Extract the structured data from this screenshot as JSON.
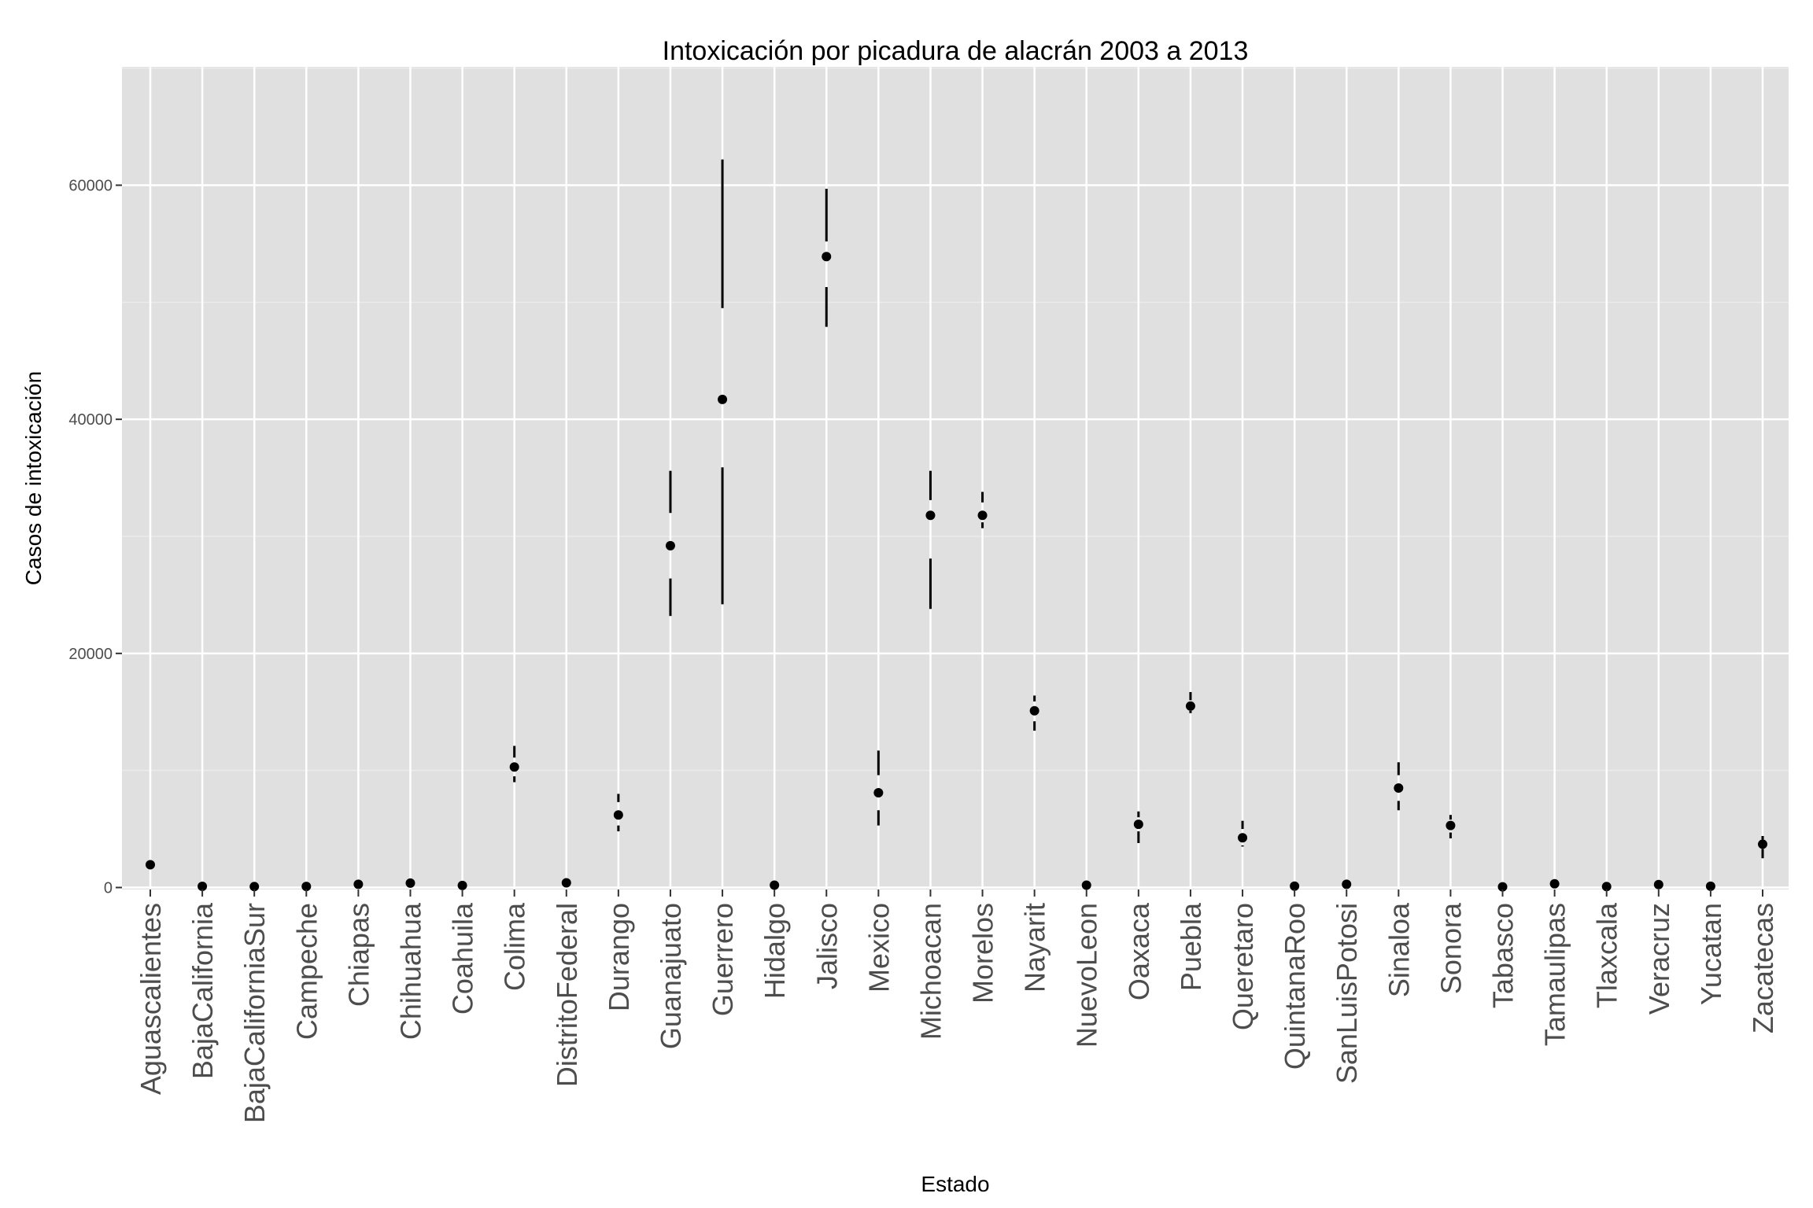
{
  "chart_data": {
    "type": "scatter",
    "title": "Intoxicación por picadura de alacrán 2003 a 2013",
    "xlabel": "Estado",
    "ylabel": "Casos de intoxicación",
    "ylim": [
      0,
      70000
    ],
    "yticks": [
      0,
      20000,
      40000,
      60000
    ],
    "grid": true,
    "legend": "none",
    "colors": {
      "panel": "#e0e0e0",
      "grid_major": "#ffffff",
      "grid_minor": "#ebebeb",
      "mark": "#000000",
      "tick_text": "#4d4d4d"
    },
    "categories": [
      "Aguascalientes",
      "BajaCalifornia",
      "BajaCaliforniaSur",
      "Campeche",
      "Chiapas",
      "Chihuahua",
      "Coahuila",
      "Colima",
      "DistritoFederal",
      "Durango",
      "Guanajuato",
      "Guerrero",
      "Hidalgo",
      "Jalisco",
      "Mexico",
      "Michoacan",
      "Morelos",
      "Nayarit",
      "NuevoLeon",
      "Oaxaca",
      "Puebla",
      "Queretaro",
      "QuintanaRoo",
      "SanLuisPotosi",
      "Sinaloa",
      "Sonora",
      "Tabasco",
      "Tamaulipas",
      "Tlaxcala",
      "Veracruz",
      "Yucatan",
      "Zacatecas"
    ],
    "series": [
      {
        "mean": [
          1950,
          100,
          80,
          90,
          280,
          380,
          180,
          10300,
          400,
          6200,
          29200,
          41700,
          200,
          53900,
          8100,
          31800,
          31800,
          15100,
          200,
          5400,
          15500,
          4250,
          120,
          280,
          8500,
          5300,
          60,
          320,
          80,
          250,
          110,
          3700
        ],
        "upper": [
          null,
          null,
          null,
          null,
          null,
          null,
          null,
          12100,
          null,
          8000,
          35600,
          62200,
          null,
          59700,
          11700,
          35600,
          33800,
          16400,
          null,
          6500,
          16700,
          5700,
          null,
          null,
          10700,
          6200,
          null,
          null,
          null,
          null,
          null,
          4400
        ],
        "upper_inner": [
          null,
          null,
          null,
          null,
          null,
          null,
          null,
          11100,
          null,
          7300,
          32000,
          49500,
          null,
          55200,
          9600,
          33100,
          32900,
          15900,
          null,
          6000,
          16000,
          5000,
          null,
          null,
          9600,
          5800,
          null,
          null,
          null,
          null,
          null,
          4100
        ],
        "lower_inner": [
          null,
          null,
          null,
          null,
          null,
          null,
          null,
          9500,
          null,
          5300,
          26400,
          35900,
          null,
          51300,
          6600,
          28100,
          31200,
          14200,
          null,
          4800,
          15100,
          3600,
          null,
          null,
          7400,
          4700,
          null,
          null,
          null,
          null,
          null,
          3300
        ],
        "lower": [
          null,
          null,
          null,
          null,
          null,
          null,
          null,
          9000,
          null,
          4800,
          23200,
          24200,
          null,
          47900,
          5300,
          23800,
          30700,
          13400,
          null,
          3800,
          14900,
          3500,
          null,
          null,
          6600,
          4200,
          null,
          null,
          null,
          null,
          null,
          2500
        ]
      }
    ]
  }
}
